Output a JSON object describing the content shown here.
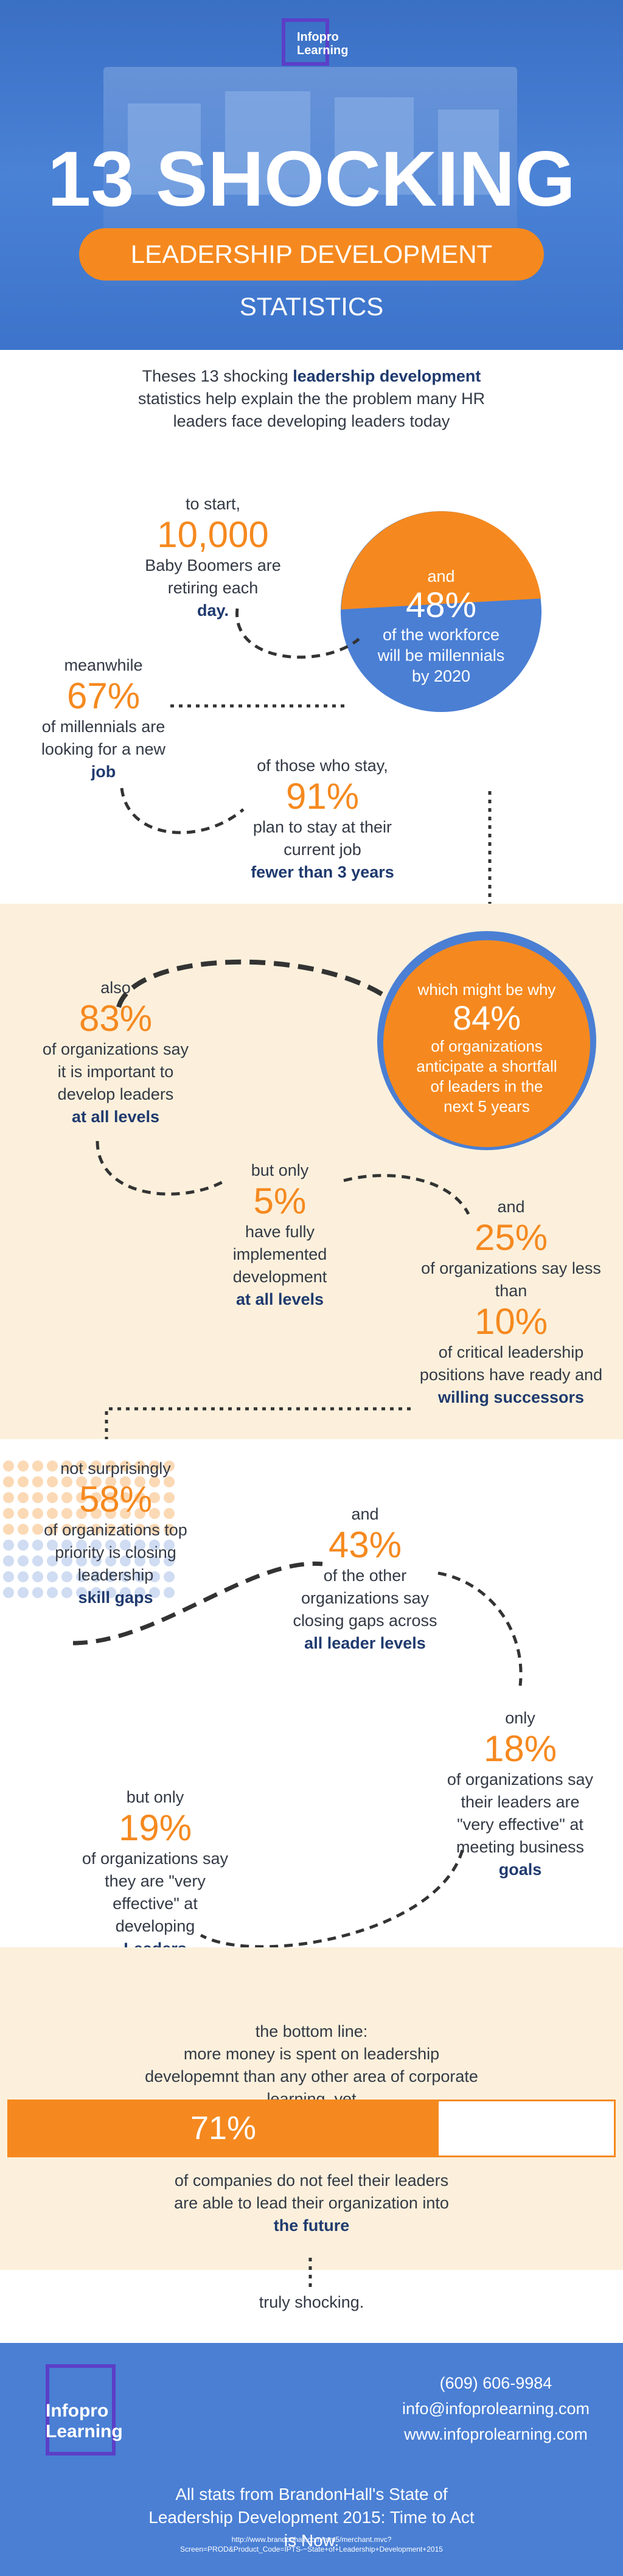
{
  "header": {
    "logo_line1": "Infopro",
    "logo_line2": "Learning",
    "title": "13 SHOCKING",
    "subtitle": "LEADERSHIP DEVELOPMENT STATISTICS"
  },
  "intro": {
    "text_before": "Theses 13 shocking",
    "highlight": "leadership development",
    "text_after": "statistics help explain the the problem many HR leaders face developing leaders today"
  },
  "stats": {
    "s1": {
      "pre": "to start,",
      "value": "10,000",
      "post": "Baby Boomers are retiring each",
      "emph": "day."
    },
    "s2": {
      "pre": "and",
      "value": "48%",
      "post": "of the workforce will be millennials by 2020"
    },
    "s3": {
      "pre": "meanwhile",
      "value": "67%",
      "post": "of millennials are looking for a new",
      "emph": "job"
    },
    "s4": {
      "pre": "of those who stay,",
      "value": "91%",
      "post": "plan to stay at their current job",
      "emph": "fewer than 3 years"
    },
    "s5": {
      "pre": "which might be why",
      "value": "84%",
      "post": "of organizations anticipate a shortfall of leaders in the next 5 years"
    },
    "s6": {
      "pre": "also",
      "value": "83%",
      "post": "of organizations say it is important to develop leaders",
      "emph": "at all levels"
    },
    "s7": {
      "pre": "but only",
      "value": "5%",
      "post": "have fully implemented development",
      "emph": "at all levels"
    },
    "s8": {
      "pre": "and",
      "value": "25%",
      "post": "of organizations say less than",
      "value2": "10%",
      "post2": "of critical leadership positions have ready and",
      "emph": "willing successors"
    },
    "s9": {
      "pre": "not surprisingly",
      "value": "58%",
      "post": "of organizations top priority is closing leadership",
      "emph": "skill gaps"
    },
    "s10": {
      "pre": "and",
      "value": "43%",
      "post": "of the other organizations say closing gaps across",
      "emph": "all leader levels"
    },
    "s11": {
      "pre": "only",
      "value": "18%",
      "post": "of organizations say their leaders are \"very effective\" at meeting business",
      "emph": "goals"
    },
    "s12": {
      "pre": "but only",
      "value": "19%",
      "post": "of organizations say they are \"very effective\" at developing",
      "emph": "Leaders"
    }
  },
  "bottom_line": {
    "pre": "the bottom line:",
    "text": "more money is spent on leadership developemnt than any other area of corporate learning, yet",
    "progress_value": "71%",
    "progress_fraction": 0.71,
    "post": "of companies do not feel their leaders are able to lead their organization into",
    "emph": "the future",
    "closing": "truly shocking."
  },
  "footer": {
    "logo_line1": "Infopro",
    "logo_line2": "Learning",
    "phone": "(609) 606-9984",
    "email": "info@infoprolearning.com",
    "website": "www.infoprolearning.com",
    "source": "All stats from BrandonHall's State of Leadership Development 2015: Time to Act is Now.",
    "url_line1": "http://www.brandonhall.com/mm5/merchant.mvc?",
    "url_line2": "Screen=PROD&Product_Code=IPTS-~State+of+Leadership+Development+2015"
  },
  "colors": {
    "blue": "#3a6fc4",
    "orange": "#f5891f",
    "navy": "#1f3a6e",
    "cream": "#fcf0dc",
    "purple": "#5b3fc7"
  }
}
